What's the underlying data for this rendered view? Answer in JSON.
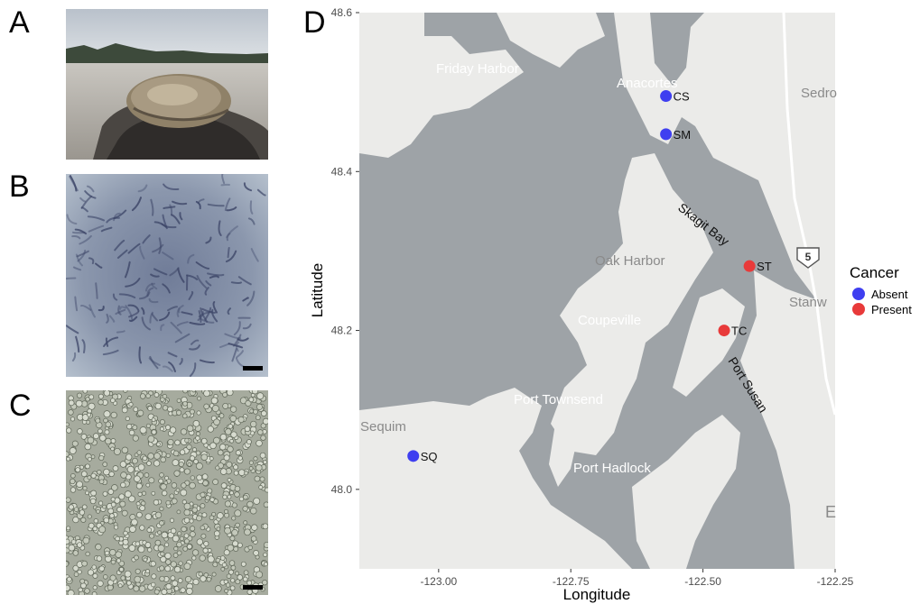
{
  "panels": {
    "a": {
      "letter": "A"
    },
    "b": {
      "letter": "B"
    },
    "c": {
      "letter": "C"
    },
    "d": {
      "letter": "D"
    }
  },
  "map_place_labels": [
    {
      "id": "friday-harbor",
      "text": "Friday Harbor"
    },
    {
      "id": "anacortes",
      "text": "Anacortes"
    },
    {
      "id": "sedro",
      "text": "Sedro"
    },
    {
      "id": "skagit-bay",
      "text": "Skagit Bay"
    },
    {
      "id": "oak-harbor",
      "text": "Oak Harbor"
    },
    {
      "id": "stanwood",
      "text": "Stanw"
    },
    {
      "id": "coupeville",
      "text": "Coupeville"
    },
    {
      "id": "port-susan",
      "text": "Port Susan"
    },
    {
      "id": "port-townsend",
      "text": "Port Townsend"
    },
    {
      "id": "sequim",
      "text": "Sequim"
    },
    {
      "id": "port-hadlock",
      "text": "Port Hadlock"
    },
    {
      "id": "edge-e",
      "text": "E"
    },
    {
      "id": "highway-5",
      "text": "5"
    }
  ],
  "chart_data": {
    "type": "scatter",
    "title": "",
    "xlabel": "Longitude",
    "ylabel": "Latitude",
    "xlim": [
      -123.15,
      -122.25
    ],
    "ylim": [
      47.9,
      48.6
    ],
    "xticks": [
      -123.0,
      -122.75,
      -122.5,
      -122.25
    ],
    "xtick_labels": [
      "-123.00",
      "-122.75",
      "-122.50",
      "-122.25"
    ],
    "yticks": [
      48.0,
      48.2,
      48.4,
      48.6
    ],
    "ytick_labels": [
      "48.0",
      "48.2",
      "48.4",
      "48.6"
    ],
    "grid": false,
    "legend": {
      "title": "Cancer",
      "placement": "right",
      "entries": [
        {
          "label": "Absent",
          "color": "#3f3ff0"
        },
        {
          "label": "Present",
          "color": "#e83a3a"
        }
      ]
    },
    "points": [
      {
        "label": "CS",
        "x": -122.57,
        "y": 48.495,
        "cancer": "Absent"
      },
      {
        "label": "SM",
        "x": -122.57,
        "y": 48.447,
        "cancer": "Absent"
      },
      {
        "label": "ST",
        "x": -122.412,
        "y": 48.281,
        "cancer": "Present"
      },
      {
        "label": "TC",
        "x": -122.46,
        "y": 48.2,
        "cancer": "Present"
      },
      {
        "label": "SQ",
        "x": -123.048,
        "y": 48.042,
        "cancer": "Absent"
      }
    ]
  },
  "colors": {
    "water": "#9ea3a7",
    "land": "#ebebe9",
    "land_dark": "#dcdcd8",
    "absent": "#3f3ff0",
    "present": "#e83a3a"
  }
}
